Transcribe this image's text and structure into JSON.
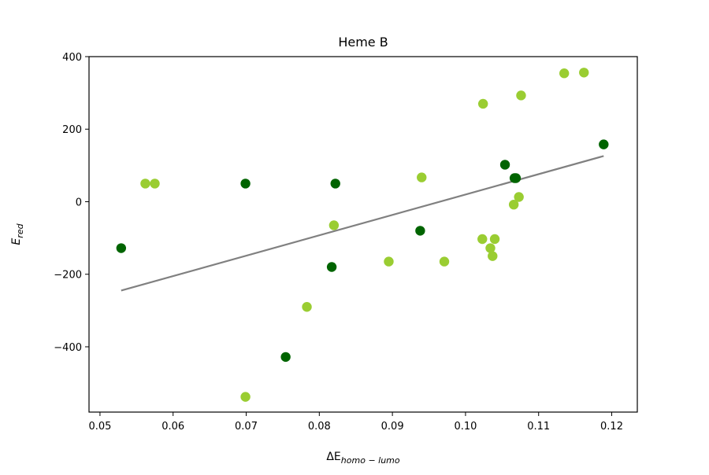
{
  "chart_data": {
    "type": "scatter",
    "title": "Heme B",
    "xlabel": {
      "prefix": "ΔE",
      "subscript": "homo − lumo"
    },
    "ylabel": {
      "base": "E",
      "subscript": "red"
    },
    "xlim": [
      0.0485,
      0.1235
    ],
    "ylim": [
      -580,
      400
    ],
    "xticks": [
      0.05,
      0.06,
      0.07,
      0.08,
      0.09,
      0.1,
      0.11,
      0.12
    ],
    "xtick_labels": [
      "0.05",
      "0.06",
      "0.07",
      "0.08",
      "0.09",
      "0.10",
      "0.11",
      "0.12"
    ],
    "yticks": [
      -400,
      -200,
      0,
      200,
      400
    ],
    "ytick_labels": [
      "−400",
      "−200",
      "0",
      "200",
      "400"
    ],
    "grid": false,
    "legend": "none",
    "series": [
      {
        "color": "#006400",
        "points": [
          {
            "x": 0.0529,
            "y": -128
          },
          {
            "x": 0.0699,
            "y": 50
          },
          {
            "x": 0.0754,
            "y": -428
          },
          {
            "x": 0.0817,
            "y": -180
          },
          {
            "x": 0.0822,
            "y": 50
          },
          {
            "x": 0.0938,
            "y": -80
          },
          {
            "x": 0.1054,
            "y": 102
          },
          {
            "x": 0.1067,
            "y": 65
          },
          {
            "x": 0.1069,
            "y": 65
          },
          {
            "x": 0.1189,
            "y": 158
          }
        ]
      },
      {
        "color": "#9ACD32",
        "points": [
          {
            "x": 0.0562,
            "y": 50
          },
          {
            "x": 0.0575,
            "y": 50
          },
          {
            "x": 0.0699,
            "y": -538
          },
          {
            "x": 0.0783,
            "y": -290
          },
          {
            "x": 0.082,
            "y": -65
          },
          {
            "x": 0.0895,
            "y": -165
          },
          {
            "x": 0.094,
            "y": 67
          },
          {
            "x": 0.0971,
            "y": -165
          },
          {
            "x": 0.1023,
            "y": -103
          },
          {
            "x": 0.1024,
            "y": 270
          },
          {
            "x": 0.1034,
            "y": -128
          },
          {
            "x": 0.1037,
            "y": -150
          },
          {
            "x": 0.104,
            "y": -103
          },
          {
            "x": 0.1066,
            "y": -8
          },
          {
            "x": 0.1073,
            "y": 13
          },
          {
            "x": 0.1076,
            "y": 293
          },
          {
            "x": 0.1135,
            "y": 354
          },
          {
            "x": 0.1162,
            "y": 356
          }
        ]
      }
    ],
    "fit_line": {
      "color": "#808080",
      "points": [
        {
          "x": 0.0529,
          "y": -245
        },
        {
          "x": 0.1189,
          "y": 126
        }
      ]
    }
  }
}
